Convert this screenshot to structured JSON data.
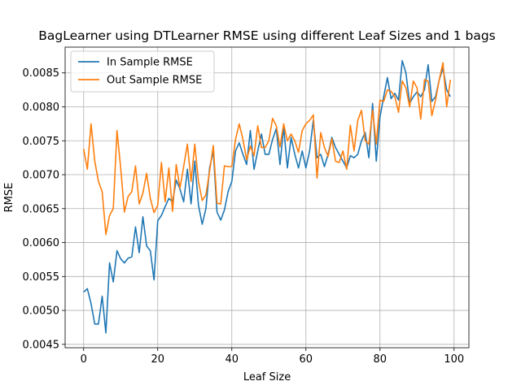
{
  "chart_data": {
    "type": "line",
    "title": "BagLearner using DTLearner RMSE using different Leaf Sizes and 1 bags",
    "xlabel": "Leaf Size",
    "ylabel": "RMSE",
    "xlim": [
      -5,
      104
    ],
    "ylim": [
      0.00445,
      0.00888
    ],
    "xticks": [
      0,
      20,
      40,
      60,
      80,
      100
    ],
    "xtick_labels": [
      "0",
      "20",
      "40",
      "60",
      "80",
      "100"
    ],
    "yticks": [
      0.0045,
      0.005,
      0.0055,
      0.006,
      0.0065,
      0.007,
      0.0075,
      0.008,
      0.0085
    ],
    "ytick_labels": [
      "0.0045",
      "0.0050",
      "0.0055",
      "0.0060",
      "0.0065",
      "0.0070",
      "0.0075",
      "0.0080",
      "0.0085"
    ],
    "grid": true,
    "legend_position": "top-left",
    "x": [
      0,
      1,
      2,
      3,
      4,
      5,
      6,
      7,
      8,
      9,
      10,
      11,
      12,
      13,
      14,
      15,
      16,
      17,
      18,
      19,
      20,
      21,
      22,
      23,
      24,
      25,
      26,
      27,
      28,
      29,
      30,
      31,
      32,
      33,
      34,
      35,
      36,
      37,
      38,
      39,
      40,
      41,
      42,
      43,
      44,
      45,
      46,
      47,
      48,
      49,
      50,
      51,
      52,
      53,
      54,
      55,
      56,
      57,
      58,
      59,
      60,
      61,
      62,
      63,
      64,
      65,
      66,
      67,
      68,
      69,
      70,
      71,
      72,
      73,
      74,
      75,
      76,
      77,
      78,
      79,
      80,
      81,
      82,
      83,
      84,
      85,
      86,
      87,
      88,
      89,
      90,
      91,
      92,
      93,
      94,
      95,
      96,
      97,
      98,
      99
    ],
    "series": [
      {
        "name": "In Sample RMSE",
        "color": "#1f77b4",
        "values": [
          0.00527,
          0.00532,
          0.0051,
          0.0048,
          0.0048,
          0.00521,
          0.00467,
          0.0057,
          0.00542,
          0.00588,
          0.00576,
          0.0057,
          0.00577,
          0.00579,
          0.00623,
          0.00585,
          0.00638,
          0.00595,
          0.00588,
          0.00545,
          0.00632,
          0.0064,
          0.00653,
          0.00665,
          0.0066,
          0.00692,
          0.00679,
          0.0066,
          0.00708,
          0.00657,
          0.0072,
          0.00655,
          0.00627,
          0.0065,
          0.0071,
          0.00735,
          0.00645,
          0.00633,
          0.00648,
          0.00675,
          0.0069,
          0.00735,
          0.00747,
          0.0073,
          0.00715,
          0.00765,
          0.00708,
          0.00735,
          0.0076,
          0.0073,
          0.0073,
          0.00752,
          0.00768,
          0.00715,
          0.0077,
          0.0071,
          0.00755,
          0.0073,
          0.0071,
          0.00735,
          0.0071,
          0.00735,
          0.0078,
          0.00725,
          0.0073,
          0.00712,
          0.0073,
          0.00755,
          0.0074,
          0.0073,
          0.0072,
          0.0071,
          0.00728,
          0.00725,
          0.0073,
          0.0075,
          0.00762,
          0.00725,
          0.00805,
          0.0072,
          0.00785,
          0.00815,
          0.00843,
          0.00812,
          0.0082,
          0.0081,
          0.00868,
          0.0085,
          0.00805,
          0.00815,
          0.00822,
          0.00815,
          0.00825,
          0.00862,
          0.00808,
          0.00815,
          0.0084,
          0.00857,
          0.00825,
          0.00815
        ]
      },
      {
        "name": "Out Sample RMSE",
        "color": "#ff7f0e",
        "values": [
          0.00738,
          0.00708,
          0.00775,
          0.0072,
          0.0069,
          0.00675,
          0.00612,
          0.0064,
          0.0065,
          0.00765,
          0.0071,
          0.00645,
          0.00668,
          0.00675,
          0.00713,
          0.00657,
          0.00673,
          0.00702,
          0.00665,
          0.00644,
          0.00655,
          0.00718,
          0.0066,
          0.0071,
          0.00646,
          0.00715,
          0.0068,
          0.00712,
          0.00745,
          0.0069,
          0.00745,
          0.0069,
          0.00662,
          0.0067,
          0.00705,
          0.00743,
          0.00658,
          0.00657,
          0.00713,
          0.00712,
          0.00712,
          0.00752,
          0.00775,
          0.00752,
          0.00722,
          0.00742,
          0.00728,
          0.00772,
          0.0074,
          0.0074,
          0.0075,
          0.00783,
          0.00772,
          0.00741,
          0.00775,
          0.0075,
          0.0076,
          0.0075,
          0.00733,
          0.00765,
          0.00775,
          0.0078,
          0.00788,
          0.00695,
          0.00762,
          0.0074,
          0.00727,
          0.00753,
          0.0072,
          0.00718,
          0.00735,
          0.00708,
          0.00773,
          0.00735,
          0.0078,
          0.00795,
          0.0075,
          0.00745,
          0.00795,
          0.00745,
          0.0081,
          0.00808,
          0.00825,
          0.00823,
          0.00815,
          0.00792,
          0.00838,
          0.00828,
          0.008,
          0.00838,
          0.00828,
          0.00782,
          0.0084,
          0.00838,
          0.00787,
          0.0081,
          0.0084,
          0.00865,
          0.008,
          0.0084
        ]
      }
    ]
  }
}
